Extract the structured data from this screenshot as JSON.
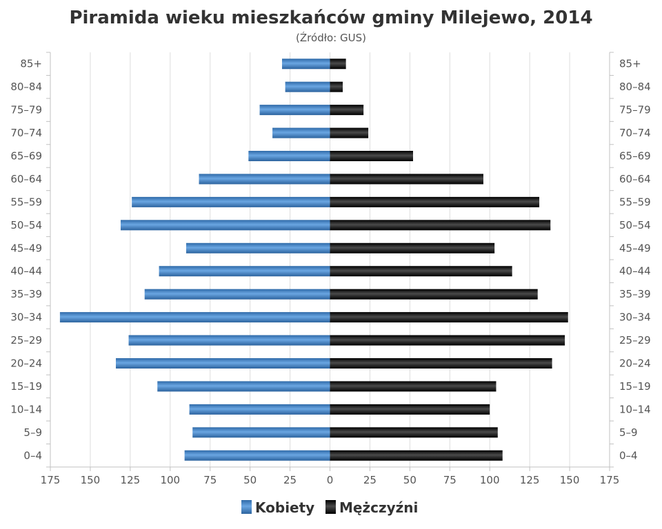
{
  "chart_data": {
    "type": "bar",
    "orientation": "horizontal",
    "title": "Piramida wieku mieszkańców gminy Milejewo, 2014",
    "subtitle": "(Źródło: GUS)",
    "categories": [
      "0–4",
      "5–9",
      "10–14",
      "15–19",
      "20–24",
      "25–29",
      "30–34",
      "35–39",
      "40–44",
      "45–49",
      "50–54",
      "55–59",
      "60–64",
      "65–69",
      "70–74",
      "75–79",
      "80–84",
      "85+"
    ],
    "series": [
      {
        "name": "Kobiety",
        "color": "#3f7fc6",
        "values": [
          91,
          86,
          88,
          108,
          134,
          126,
          169,
          116,
          107,
          90,
          131,
          124,
          82,
          51,
          36,
          44,
          28,
          30
        ]
      },
      {
        "name": "Mężczyźni",
        "color": "#1a1a1a",
        "values": [
          108,
          105,
          100,
          104,
          139,
          147,
          149,
          130,
          114,
          103,
          138,
          131,
          96,
          52,
          24,
          21,
          8,
          10
        ]
      }
    ],
    "xlim": [
      -175,
      175
    ],
    "xticks": [
      "175",
      "150",
      "125",
      "100",
      "75",
      "50",
      "25",
      "0",
      "25",
      "50",
      "75",
      "100",
      "125",
      "150",
      "175"
    ],
    "grid": true,
    "legend": "bottom-center"
  }
}
